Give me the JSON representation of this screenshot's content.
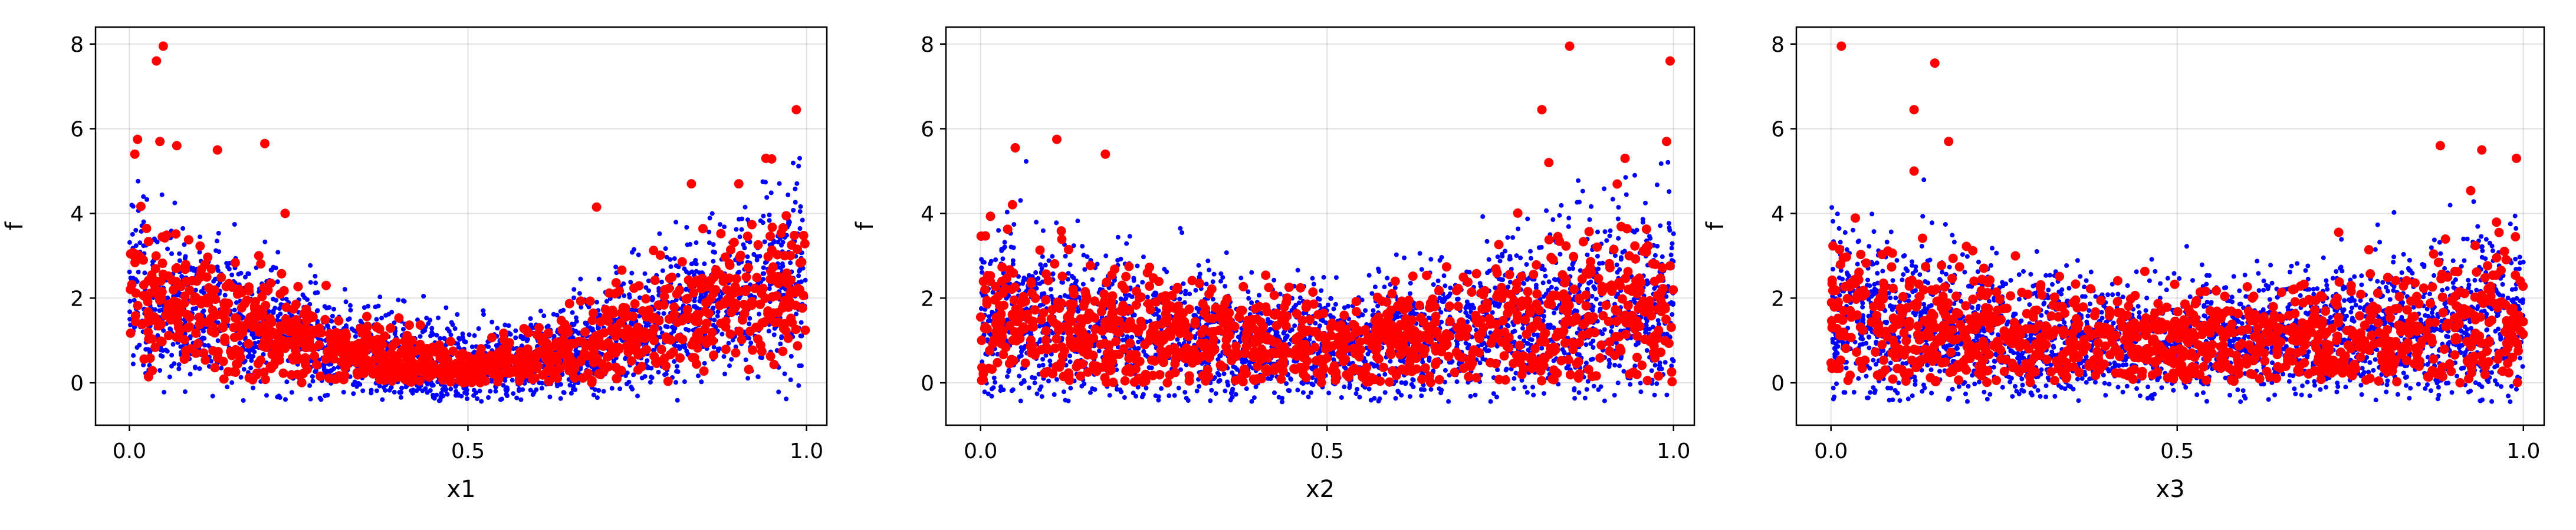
{
  "chart_data": [
    {
      "type": "scatter",
      "title": "",
      "xlabel": "x1",
      "ylabel": "f",
      "xlim": [
        -0.05,
        1.03
      ],
      "ylim": [
        -1.0,
        8.4
      ],
      "xticks": [
        0.0,
        0.5,
        1.0
      ],
      "xtick_labels": [
        "0.0",
        "0.5",
        "1.0"
      ],
      "yticks": [
        0,
        2,
        4,
        6,
        8
      ],
      "ytick_labels": [
        "0",
        "2",
        "4",
        "6",
        "8"
      ],
      "grid": true,
      "legend": "none",
      "series": [
        {
          "color": "#0000ff",
          "marker": "small-dot",
          "profile_x": [
            0.0,
            0.05,
            0.1,
            0.15,
            0.2,
            0.25,
            0.3,
            0.35,
            0.4,
            0.45,
            0.5,
            0.55,
            0.6,
            0.65,
            0.7,
            0.75,
            0.8,
            0.85,
            0.9,
            0.95,
            1.0
          ],
          "profile_mean": [
            1.8,
            1.6,
            1.45,
            1.25,
            1.05,
            0.85,
            0.7,
            0.55,
            0.4,
            0.3,
            0.25,
            0.3,
            0.45,
            0.6,
            0.8,
            1.0,
            1.2,
            1.5,
            1.75,
            2.0,
            2.2
          ],
          "profile_spread": [
            1.3,
            1.2,
            1.1,
            1.0,
            0.9,
            0.8,
            0.7,
            0.6,
            0.6,
            0.55,
            0.5,
            0.55,
            0.6,
            0.65,
            0.75,
            0.85,
            0.95,
            1.05,
            1.15,
            1.3,
            1.4
          ]
        },
        {
          "color": "#ff0000",
          "marker": "dot",
          "profile_x": [
            0.0,
            0.05,
            0.1,
            0.15,
            0.2,
            0.25,
            0.3,
            0.35,
            0.4,
            0.45,
            0.5,
            0.55,
            0.6,
            0.65,
            0.7,
            0.75,
            0.8,
            0.85,
            0.9,
            0.95,
            1.0
          ],
          "profile_mean": [
            1.8,
            1.6,
            1.45,
            1.25,
            1.05,
            0.85,
            0.7,
            0.55,
            0.4,
            0.3,
            0.25,
            0.3,
            0.45,
            0.6,
            0.8,
            1.0,
            1.2,
            1.5,
            1.75,
            2.0,
            2.2
          ],
          "profile_spread": [
            1.1,
            1.0,
            0.95,
            0.85,
            0.75,
            0.65,
            0.55,
            0.45,
            0.4,
            0.35,
            0.3,
            0.35,
            0.4,
            0.5,
            0.6,
            0.7,
            0.8,
            0.9,
            1.0,
            1.1,
            1.2
          ],
          "outliers": [
            [
              0.008,
              5.4
            ],
            [
              0.012,
              5.75
            ],
            [
              0.04,
              7.6
            ],
            [
              0.05,
              7.95
            ],
            [
              0.045,
              5.7
            ],
            [
              0.07,
              5.6
            ],
            [
              0.13,
              5.5
            ],
            [
              0.2,
              5.65
            ],
            [
              0.23,
              4.0
            ],
            [
              0.69,
              4.15
            ],
            [
              0.83,
              4.7
            ],
            [
              0.9,
              4.7
            ],
            [
              0.94,
              5.3
            ],
            [
              0.985,
              6.45
            ]
          ]
        }
      ]
    },
    {
      "type": "scatter",
      "title": "",
      "xlabel": "x2",
      "ylabel": "f",
      "xlim": [
        -0.05,
        1.03
      ],
      "ylim": [
        -1.0,
        8.4
      ],
      "xticks": [
        0.0,
        0.5,
        1.0
      ],
      "xtick_labels": [
        "0.0",
        "0.5",
        "1.0"
      ],
      "yticks": [
        0,
        2,
        4,
        6,
        8
      ],
      "ytick_labels": [
        "0",
        "2",
        "4",
        "6",
        "8"
      ],
      "grid": true,
      "legend": "none",
      "series": [
        {
          "color": "#0000ff",
          "marker": "small-dot",
          "profile_x": [
            0.0,
            0.1,
            0.2,
            0.3,
            0.4,
            0.5,
            0.6,
            0.7,
            0.8,
            0.9,
            1.0
          ],
          "profile_mean": [
            1.2,
            1.1,
            1.0,
            0.85,
            0.75,
            0.7,
            0.8,
            0.95,
            1.15,
            1.4,
            1.6
          ],
          "profile_spread": [
            1.2,
            1.1,
            1.0,
            0.9,
            0.8,
            0.75,
            0.85,
            0.95,
            1.1,
            1.25,
            1.4
          ]
        },
        {
          "color": "#ff0000",
          "marker": "dot",
          "profile_x": [
            0.0,
            0.1,
            0.2,
            0.3,
            0.4,
            0.5,
            0.6,
            0.7,
            0.8,
            0.9,
            1.0
          ],
          "profile_mean": [
            1.2,
            1.1,
            1.0,
            0.85,
            0.75,
            0.7,
            0.8,
            0.95,
            1.15,
            1.4,
            1.6
          ],
          "profile_spread": [
            1.0,
            0.95,
            0.85,
            0.75,
            0.65,
            0.6,
            0.7,
            0.8,
            0.95,
            1.1,
            1.2
          ],
          "outliers": [
            [
              0.05,
              5.55
            ],
            [
              0.11,
              5.75
            ],
            [
              0.18,
              5.4
            ],
            [
              0.81,
              6.45
            ],
            [
              0.82,
              5.2
            ],
            [
              0.85,
              7.95
            ],
            [
              0.93,
              5.3
            ],
            [
              0.995,
              7.6
            ],
            [
              0.99,
              5.7
            ]
          ]
        }
      ]
    },
    {
      "type": "scatter",
      "title": "",
      "xlabel": "x3",
      "ylabel": "f",
      "xlim": [
        -0.05,
        1.03
      ],
      "ylim": [
        -1.0,
        8.4
      ],
      "xticks": [
        0.0,
        0.5,
        1.0
      ],
      "xtick_labels": [
        "0.0",
        "0.5",
        "1.0"
      ],
      "yticks": [
        0,
        2,
        4,
        6,
        8
      ],
      "ytick_labels": [
        "0",
        "2",
        "4",
        "6",
        "8"
      ],
      "grid": true,
      "legend": "none",
      "series": [
        {
          "color": "#0000ff",
          "marker": "small-dot",
          "profile_x": [
            0.0,
            0.1,
            0.2,
            0.3,
            0.4,
            0.5,
            0.6,
            0.7,
            0.8,
            0.9,
            1.0
          ],
          "profile_mean": [
            1.2,
            1.05,
            0.9,
            0.8,
            0.75,
            0.7,
            0.75,
            0.85,
            0.95,
            1.05,
            1.15
          ],
          "profile_spread": [
            1.2,
            1.1,
            0.95,
            0.85,
            0.8,
            0.75,
            0.8,
            0.9,
            1.0,
            1.1,
            1.2
          ]
        },
        {
          "color": "#ff0000",
          "marker": "dot",
          "profile_x": [
            0.0,
            0.1,
            0.2,
            0.3,
            0.4,
            0.5,
            0.6,
            0.7,
            0.8,
            0.9,
            1.0
          ],
          "profile_mean": [
            1.2,
            1.05,
            0.9,
            0.8,
            0.75,
            0.7,
            0.75,
            0.85,
            0.95,
            1.05,
            1.15
          ],
          "profile_spread": [
            1.0,
            0.95,
            0.85,
            0.75,
            0.7,
            0.65,
            0.7,
            0.8,
            0.85,
            0.95,
            1.05
          ],
          "outliers": [
            [
              0.015,
              7.95
            ],
            [
              0.12,
              6.45
            ],
            [
              0.12,
              5.0
            ],
            [
              0.15,
              7.55
            ],
            [
              0.17,
              5.7
            ],
            [
              0.88,
              5.6
            ],
            [
              0.94,
              5.5
            ],
            [
              0.99,
              5.3
            ]
          ]
        }
      ]
    }
  ]
}
